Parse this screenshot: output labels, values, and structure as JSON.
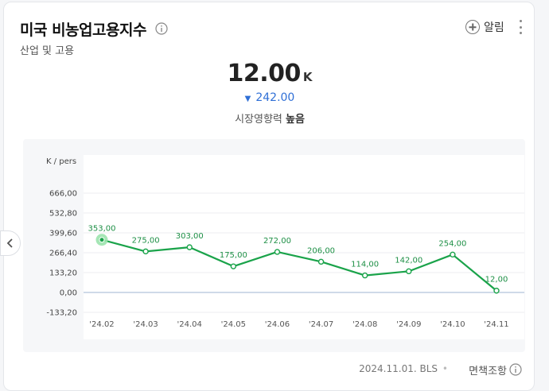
{
  "header": {
    "title": "미국 비농업고용지수",
    "category": "산업 및 고용",
    "alarm_label": "알림"
  },
  "summary": {
    "value": "12.00",
    "unit": "K",
    "change": "242.00",
    "impact_label": "시장영향력",
    "impact_value": "높음"
  },
  "chart_data": {
    "type": "line",
    "ylabel": "K / pers",
    "y_ticks": [
      "666,00",
      "532,80",
      "399,60",
      "266,40",
      "133,20",
      "0,00",
      "-133,20"
    ],
    "y_tick_values": [
      666.0,
      532.8,
      399.6,
      266.4,
      133.2,
      0.0,
      -133.2
    ],
    "ylim": [
      -133.2,
      666.0
    ],
    "categories": [
      "'24.02",
      "'24.03",
      "'24.04",
      "'24.05",
      "'24.06",
      "'24.07",
      "'24.08",
      "'24.09",
      "'24.10",
      "'24.11"
    ],
    "values": [
      353.0,
      275.0,
      303.0,
      175.0,
      272.0,
      206.0,
      114.0,
      142.0,
      254.0,
      12.0
    ],
    "value_labels": [
      "353,00",
      "275,00",
      "303,00",
      "175,00",
      "272,00",
      "206,00",
      "114,00",
      "142,00",
      "254,00",
      "12,00"
    ],
    "highlighted_index": 0,
    "line_color": "#1aa34a",
    "grid": true
  },
  "footer": {
    "source": "2024.11.01. BLS",
    "disclaimer": "면책조항"
  }
}
